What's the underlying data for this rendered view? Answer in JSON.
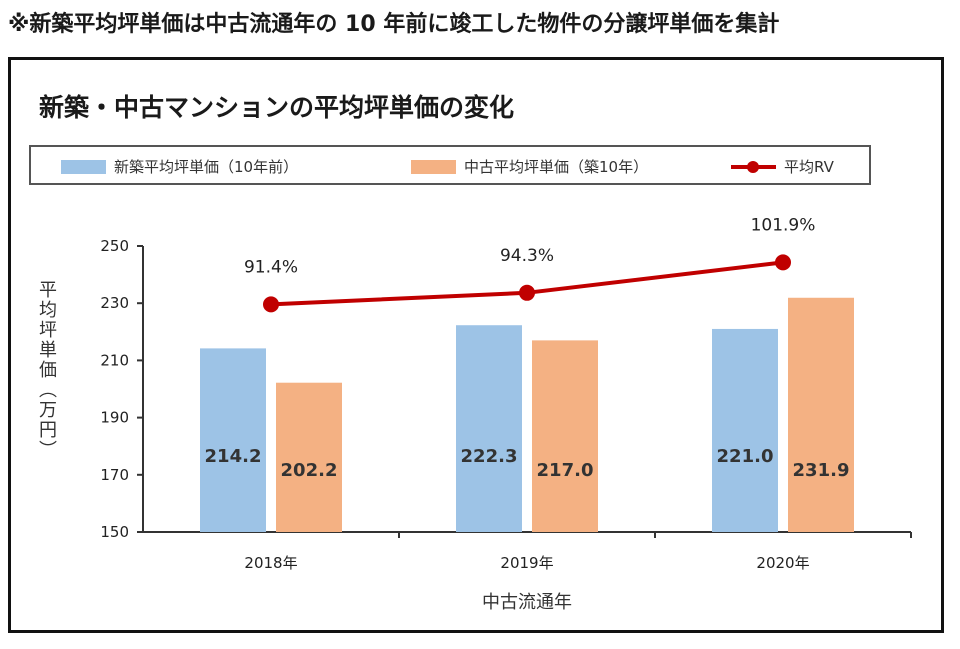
{
  "note": "※新築平均坪単価は中古流通年の 10 年前に竣工した物件の分譲坪単価を集計",
  "chart_data": {
    "type": "bar",
    "title": "新築・中古マンションの平均坪単価の変化",
    "xlabel": "中古流通年",
    "ylabel": "平均坪単価（万円）",
    "ylim": [
      150,
      250
    ],
    "yticks": [
      150,
      170,
      190,
      210,
      230,
      250
    ],
    "categories": [
      "2018年",
      "2019年",
      "2020年"
    ],
    "grid": false,
    "legend_position": "top",
    "series": [
      {
        "name": "新築平均坪単価（10年前）",
        "type": "bar",
        "color": "#9dc3e6",
        "values": [
          214.2,
          222.3,
          221.0
        ],
        "labels": [
          "214.2",
          "222.3",
          "221.0"
        ]
      },
      {
        "name": "中古平均坪単価（築10年）",
        "type": "bar",
        "color": "#f4b183",
        "values": [
          202.2,
          217.0,
          231.9
        ],
        "labels": [
          "202.2",
          "217.0",
          "231.9"
        ]
      },
      {
        "name": "平均RV",
        "type": "line",
        "color": "#c00000",
        "values": [
          91.4,
          94.3,
          101.9
        ],
        "labels": [
          "91.4%",
          "94.3%",
          "101.9%"
        ]
      }
    ]
  }
}
